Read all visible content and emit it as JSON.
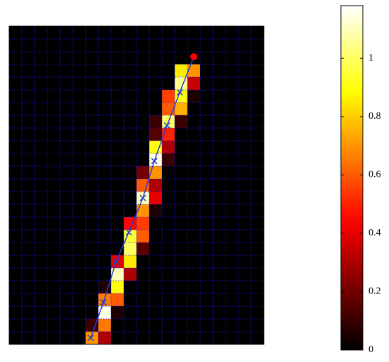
{
  "chart_data": {
    "type": "heatmap",
    "colormap": "hot",
    "grid": true,
    "grid_color": "#1a1aff",
    "z": [
      [
        0,
        0,
        0,
        0,
        0,
        0,
        0,
        0,
        0,
        0,
        0,
        0,
        0,
        0,
        0,
        0,
        0,
        0,
        0,
        0
      ],
      [
        0,
        0,
        0,
        0,
        0,
        0,
        0,
        0,
        0,
        0,
        0,
        0,
        0,
        0,
        0,
        0,
        0,
        0,
        0,
        0
      ],
      [
        0,
        0,
        0,
        0,
        0,
        0,
        0,
        0,
        0,
        0,
        0,
        0,
        0,
        0,
        0,
        0,
        0,
        0,
        0,
        0
      ],
      [
        0,
        0,
        0,
        0,
        0,
        0,
        0,
        0,
        0,
        0,
        0,
        0,
        0,
        0.85,
        0.7,
        0,
        0,
        0,
        0,
        0
      ],
      [
        0,
        0,
        0,
        0,
        0,
        0,
        0,
        0,
        0,
        0,
        0,
        0,
        0,
        1.05,
        0.35,
        0,
        0,
        0,
        0,
        0
      ],
      [
        0,
        0,
        0,
        0,
        0,
        0,
        0,
        0,
        0,
        0,
        0,
        0,
        0.55,
        0.9,
        0.05,
        0,
        0,
        0,
        0,
        0
      ],
      [
        0,
        0,
        0,
        0,
        0,
        0,
        0,
        0,
        0,
        0,
        0,
        0,
        0.6,
        0.75,
        0,
        0,
        0,
        0,
        0,
        0
      ],
      [
        0,
        0,
        0,
        0,
        0,
        0,
        0,
        0,
        0,
        0,
        0,
        0.1,
        1.0,
        0.1,
        0,
        0,
        0,
        0,
        0,
        0
      ],
      [
        0,
        0,
        0,
        0,
        0,
        0,
        0,
        0,
        0,
        0,
        0,
        0.15,
        0.5,
        0,
        0,
        0,
        0,
        0,
        0,
        0
      ],
      [
        0,
        0,
        0,
        0,
        0,
        0,
        0,
        0,
        0,
        0,
        0,
        0.9,
        0.3,
        0,
        0,
        0,
        0,
        0,
        0,
        0
      ],
      [
        0,
        0,
        0,
        0,
        0,
        0,
        0,
        0,
        0,
        0,
        0,
        1.15,
        0.1,
        0,
        0,
        0,
        0,
        0,
        0,
        0
      ],
      [
        0,
        0,
        0,
        0,
        0,
        0,
        0,
        0,
        0,
        0,
        0.2,
        0.7,
        0,
        0,
        0,
        0,
        0,
        0,
        0,
        0
      ],
      [
        0,
        0,
        0,
        0,
        0,
        0,
        0,
        0,
        0,
        0,
        0.6,
        0.3,
        0,
        0,
        0,
        0,
        0,
        0,
        0,
        0
      ],
      [
        0,
        0,
        0,
        0,
        0,
        0,
        0,
        0,
        0,
        0,
        1.1,
        0.4,
        0,
        0,
        0,
        0,
        0,
        0,
        0,
        0
      ],
      [
        0,
        0,
        0,
        0,
        0,
        0,
        0,
        0,
        0,
        0,
        0.7,
        0.05,
        0,
        0,
        0,
        0,
        0,
        0,
        0,
        0
      ],
      [
        0,
        0,
        0,
        0,
        0,
        0,
        0,
        0,
        0,
        0.45,
        0.55,
        0,
        0,
        0,
        0,
        0,
        0,
        0,
        0,
        0
      ],
      [
        0,
        0,
        0,
        0,
        0,
        0,
        0,
        0,
        0,
        0.95,
        0.6,
        0,
        0,
        0,
        0,
        0,
        0,
        0,
        0,
        0
      ],
      [
        0,
        0,
        0,
        0,
        0,
        0,
        0,
        0,
        0,
        1.0,
        0.15,
        0,
        0,
        0,
        0,
        0,
        0,
        0,
        0,
        0
      ],
      [
        0,
        0,
        0,
        0,
        0,
        0,
        0,
        0,
        0.4,
        0.85,
        0,
        0,
        0,
        0,
        0,
        0,
        0,
        0,
        0,
        0
      ],
      [
        0,
        0,
        0,
        0,
        0,
        0,
        0,
        0,
        1.1,
        0.3,
        0,
        0,
        0,
        0,
        0,
        0,
        0,
        0,
        0,
        0
      ],
      [
        0,
        0,
        0,
        0,
        0,
        0,
        0,
        0.05,
        0.9,
        0,
        0,
        0,
        0,
        0,
        0,
        0,
        0,
        0,
        0,
        0
      ],
      [
        0,
        0,
        0,
        0,
        0,
        0,
        0,
        0.65,
        0.6,
        0,
        0,
        0,
        0,
        0,
        0,
        0,
        0,
        0,
        0,
        0
      ],
      [
        0,
        0,
        0,
        0,
        0,
        0,
        0,
        1.15,
        0.05,
        0,
        0,
        0,
        0,
        0,
        0,
        0,
        0,
        0,
        0,
        0
      ],
      [
        0,
        0,
        0,
        0,
        0,
        0,
        0.1,
        0.65,
        0,
        0,
        0,
        0,
        0,
        0,
        0,
        0,
        0,
        0,
        0,
        0
      ],
      [
        0,
        0,
        0,
        0,
        0,
        0,
        0.7,
        0.3,
        0,
        0,
        0,
        0,
        0,
        0,
        0,
        0,
        0,
        0,
        0,
        0
      ]
    ],
    "trajectory": {
      "color": "#1f3fd6",
      "x": [
        14.5,
        13.4,
        12.4,
        11.4,
        10.5,
        9.4,
        8.4,
        7.4,
        6.4
      ],
      "y": [
        2.4,
        5.2,
        7.8,
        10.6,
        13.5,
        16.2,
        18.5,
        21.7,
        24.5
      ]
    },
    "start": {
      "color": "#ff0000",
      "x": 14.5,
      "y": 2.4
    },
    "colorbar": {
      "lim": [
        0,
        1.18
      ],
      "ticks": [
        0,
        0.2,
        0.4,
        0.6,
        0.8,
        1
      ]
    }
  }
}
